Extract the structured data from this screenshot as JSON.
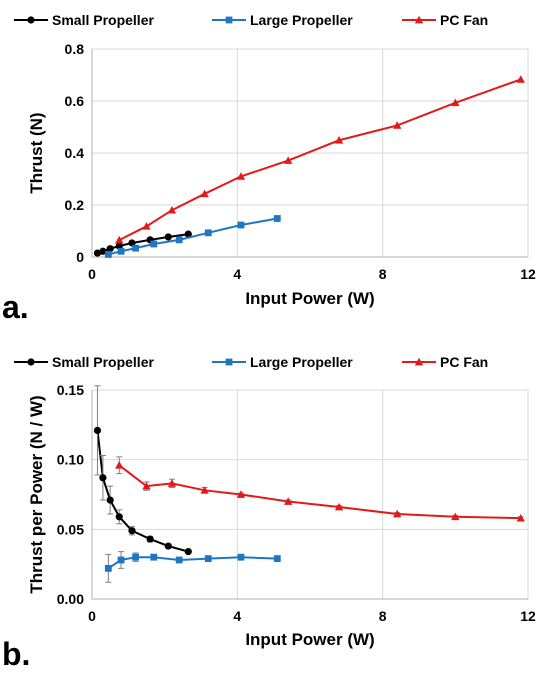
{
  "chart_data": [
    {
      "type": "line",
      "panel_label": "a.",
      "xlabel": "Input Power (W)",
      "ylabel": "Thrust (N)",
      "xlim": [
        0,
        12
      ],
      "ylim": [
        0,
        0.8
      ],
      "xticks": [
        0,
        4,
        8,
        12
      ],
      "yticks": [
        0,
        0.2,
        0.4,
        0.6,
        0.8
      ],
      "xtick_labels": [
        "0",
        "4",
        "8",
        "12"
      ],
      "ytick_labels": [
        "0",
        "0.2",
        "0.4",
        "0.6",
        "0.8"
      ],
      "grid": true,
      "legend_position": "top",
      "series": [
        {
          "name": "Small Propeller",
          "color": "#000000",
          "marker": "circle",
          "points": [
            {
              "x": 0.15,
              "y": 0.015
            },
            {
              "x": 0.3,
              "y": 0.022
            },
            {
              "x": 0.5,
              "y": 0.032
            },
            {
              "x": 0.75,
              "y": 0.042
            },
            {
              "x": 1.1,
              "y": 0.054
            },
            {
              "x": 1.6,
              "y": 0.066
            },
            {
              "x": 2.1,
              "y": 0.077
            },
            {
              "x": 2.65,
              "y": 0.088
            }
          ]
        },
        {
          "name": "Large Propeller",
          "color": "#1f77c4",
          "marker": "square",
          "points": [
            {
              "x": 0.45,
              "y": 0.01
            },
            {
              "x": 0.8,
              "y": 0.022
            },
            {
              "x": 1.2,
              "y": 0.034
            },
            {
              "x": 1.7,
              "y": 0.05
            },
            {
              "x": 2.4,
              "y": 0.066
            },
            {
              "x": 3.2,
              "y": 0.093
            },
            {
              "x": 4.1,
              "y": 0.123
            },
            {
              "x": 5.1,
              "y": 0.148
            }
          ]
        },
        {
          "name": "PC Fan",
          "color": "#e31a1c",
          "marker": "triangle",
          "points": [
            {
              "x": 0.75,
              "y": 0.065
            },
            {
              "x": 1.5,
              "y": 0.118
            },
            {
              "x": 2.2,
              "y": 0.18
            },
            {
              "x": 3.1,
              "y": 0.243
            },
            {
              "x": 4.1,
              "y": 0.31
            },
            {
              "x": 5.4,
              "y": 0.371
            },
            {
              "x": 6.8,
              "y": 0.449
            },
            {
              "x": 8.4,
              "y": 0.506
            },
            {
              "x": 10.0,
              "y": 0.593
            },
            {
              "x": 11.8,
              "y": 0.683
            }
          ]
        }
      ]
    },
    {
      "type": "line",
      "panel_label": "b.",
      "xlabel": "Input Power (W)",
      "ylabel": "Thrust per Power (N / W)",
      "xlim": [
        0,
        12
      ],
      "ylim": [
        0,
        0.15
      ],
      "xticks": [
        0,
        4,
        8,
        12
      ],
      "yticks": [
        0,
        0.05,
        0.1,
        0.15
      ],
      "xtick_labels": [
        "0",
        "4",
        "8",
        "12"
      ],
      "ytick_labels": [
        "0.00",
        "0.05",
        "0.10",
        "0.15"
      ],
      "grid": true,
      "legend_position": "top",
      "series": [
        {
          "name": "Small Propeller",
          "color": "#000000",
          "marker": "circle",
          "points": [
            {
              "x": 0.15,
              "y": 0.121,
              "err": 0.032
            },
            {
              "x": 0.3,
              "y": 0.087,
              "err": 0.016
            },
            {
              "x": 0.5,
              "y": 0.071,
              "err": 0.01
            },
            {
              "x": 0.75,
              "y": 0.059,
              "err": 0.005
            },
            {
              "x": 1.1,
              "y": 0.049,
              "err": 0.003
            },
            {
              "x": 1.6,
              "y": 0.043,
              "err": 0.002
            },
            {
              "x": 2.1,
              "y": 0.038,
              "err": 0.001
            },
            {
              "x": 2.65,
              "y": 0.034,
              "err": 0.001
            }
          ]
        },
        {
          "name": "Large Propeller",
          "color": "#1f77c4",
          "marker": "square",
          "points": [
            {
              "x": 0.45,
              "y": 0.022,
              "err": 0.01
            },
            {
              "x": 0.8,
              "y": 0.028,
              "err": 0.006
            },
            {
              "x": 1.2,
              "y": 0.03,
              "err": 0.003
            },
            {
              "x": 1.7,
              "y": 0.03,
              "err": 0.002
            },
            {
              "x": 2.4,
              "y": 0.028,
              "err": 0.001
            },
            {
              "x": 3.2,
              "y": 0.029,
              "err": 0.001
            },
            {
              "x": 4.1,
              "y": 0.03,
              "err": 0.001
            },
            {
              "x": 5.1,
              "y": 0.029,
              "err": 0.001
            }
          ]
        },
        {
          "name": "PC Fan",
          "color": "#e31a1c",
          "marker": "triangle",
          "points": [
            {
              "x": 0.75,
              "y": 0.096,
              "err": 0.006
            },
            {
              "x": 1.5,
              "y": 0.081,
              "err": 0.003
            },
            {
              "x": 2.2,
              "y": 0.083,
              "err": 0.003
            },
            {
              "x": 3.1,
              "y": 0.078,
              "err": 0.002
            },
            {
              "x": 4.1,
              "y": 0.075,
              "err": 0.001
            },
            {
              "x": 5.4,
              "y": 0.07,
              "err": 0.001
            },
            {
              "x": 6.8,
              "y": 0.066,
              "err": 0.001
            },
            {
              "x": 8.4,
              "y": 0.061,
              "err": 0.001
            },
            {
              "x": 10.0,
              "y": 0.059,
              "err": 0.001
            },
            {
              "x": 11.8,
              "y": 0.058,
              "err": 0.001
            }
          ]
        }
      ]
    }
  ]
}
